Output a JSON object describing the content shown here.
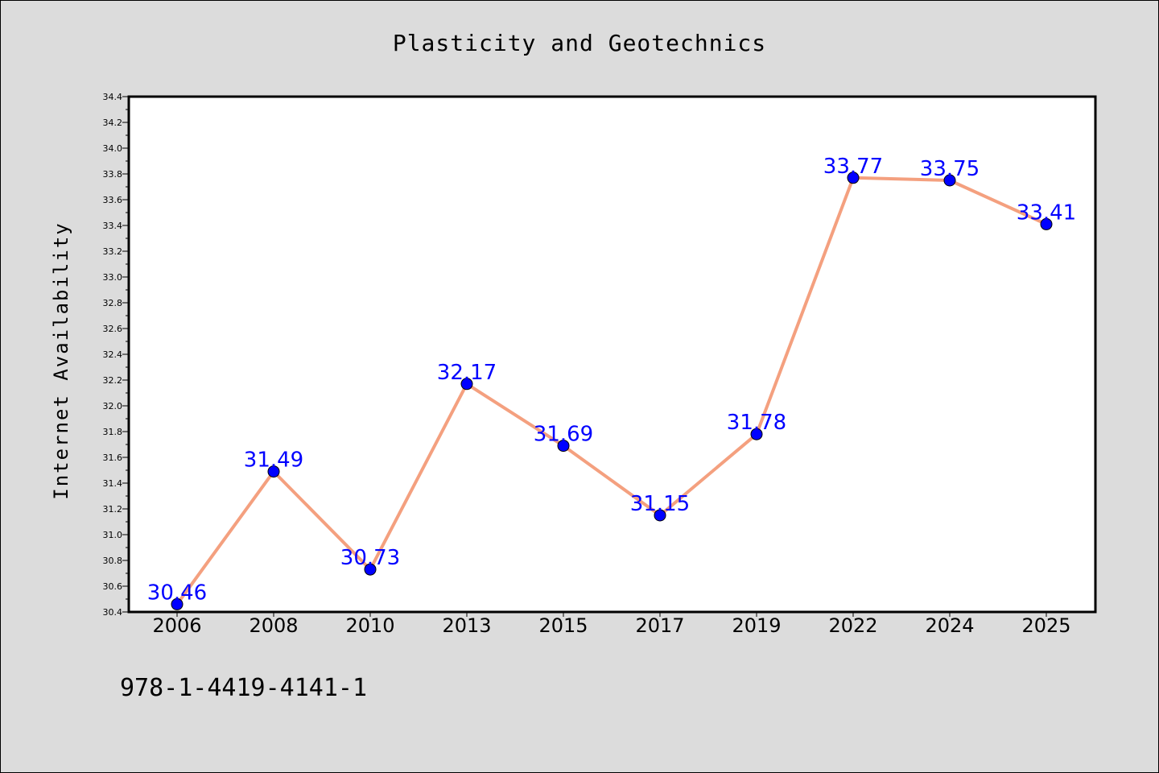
{
  "chart_data": {
    "type": "line",
    "title": "Plasticity and Geotechnics",
    "xlabel": "",
    "ylabel": "Internet Availability",
    "categories": [
      "2006",
      "2008",
      "2010",
      "2013",
      "2015",
      "2017",
      "2019",
      "2022",
      "2024",
      "2025"
    ],
    "values": [
      30.46,
      31.49,
      30.73,
      32.17,
      31.69,
      31.15,
      31.78,
      33.77,
      33.75,
      33.41
    ],
    "data_labels": [
      "30.46",
      "31.49",
      "30.73",
      "32.17",
      "31.69",
      "31.15",
      "31.78",
      "33.77",
      "33.75",
      "33.41"
    ],
    "ylim": [
      30.4,
      34.4
    ],
    "yticks": [
      "30.4",
      "30.6",
      "30.8",
      "31.0",
      "31.2",
      "31.4",
      "31.6",
      "31.8",
      "32.0",
      "32.2",
      "32.4",
      "32.6",
      "32.8",
      "33.0",
      "33.2",
      "33.4",
      "33.6",
      "33.8",
      "34.0",
      "34.2",
      "34.4"
    ],
    "grid": false,
    "legend": "none"
  },
  "footnote": "978-1-4419-4141-1",
  "colors": {
    "background": "#dcdcdc",
    "plot_background": "#ffffff",
    "line": "#f4a07f",
    "marker": "#0000ff",
    "data_label": "#0000ff"
  }
}
